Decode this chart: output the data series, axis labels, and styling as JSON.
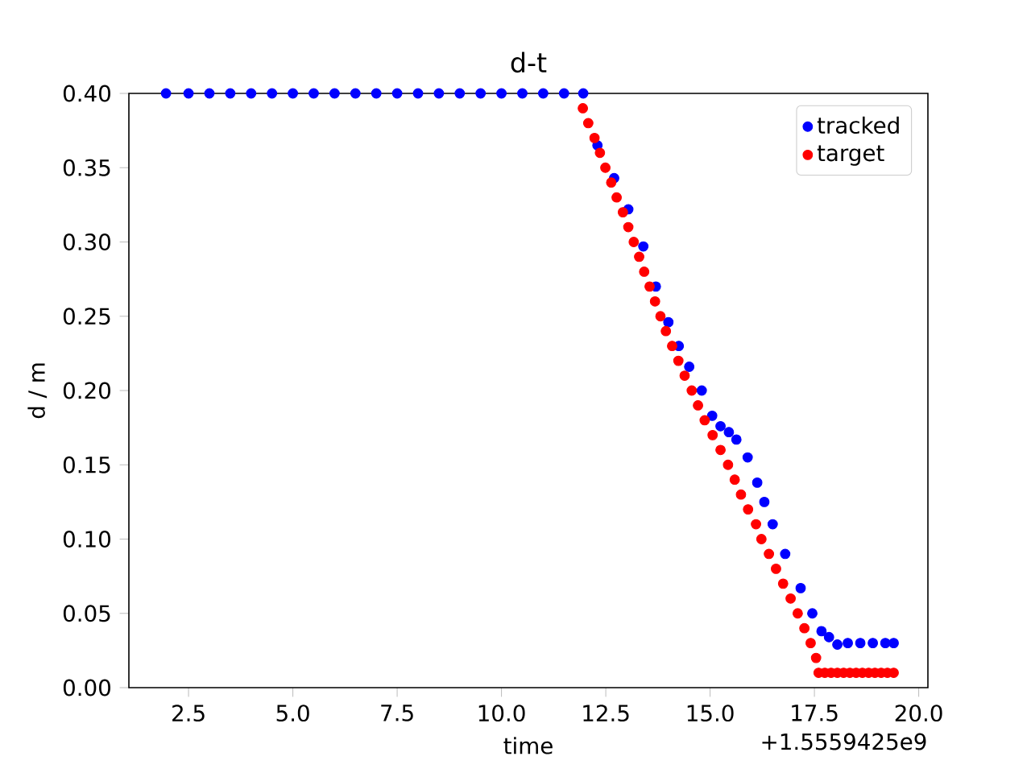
{
  "chart_data": {
    "type": "scatter",
    "title": "d-t",
    "xlabel": "time",
    "ylabel": "d / m",
    "annotations": [
      "+1.5559425e9"
    ],
    "xlim": [
      1.07,
      20.22
    ],
    "ylim": [
      0,
      0.4
    ],
    "xticks": [
      {
        "value": 2.5,
        "label": "2.5"
      },
      {
        "value": 5,
        "label": "5.0"
      },
      {
        "value": 7.5,
        "label": "7.5"
      },
      {
        "value": 10,
        "label": "10.0"
      },
      {
        "value": 12.5,
        "label": "12.5"
      },
      {
        "value": 15,
        "label": "15.0"
      },
      {
        "value": 17.5,
        "label": "17.5"
      },
      {
        "value": 20,
        "label": "20.0"
      }
    ],
    "yticks": [
      {
        "value": 0,
        "label": "0.00"
      },
      {
        "value": 0.05,
        "label": "0.05"
      },
      {
        "value": 0.1,
        "label": "0.10"
      },
      {
        "value": 0.15,
        "label": "0.15"
      },
      {
        "value": 0.2,
        "label": "0.20"
      },
      {
        "value": 0.25,
        "label": "0.25"
      },
      {
        "value": 0.3,
        "label": "0.30"
      },
      {
        "value": 0.35,
        "label": "0.35"
      },
      {
        "value": 0.4,
        "label": "0.40"
      }
    ],
    "legend": "top right",
    "marker": "circle",
    "grid": false,
    "series": [
      {
        "name": "tracked",
        "color": "#0000ff",
        "x": [
          1.96,
          2.5,
          3,
          3.5,
          4,
          4.5,
          5,
          5.5,
          6,
          6.5,
          7,
          7.5,
          8,
          8.5,
          9,
          9.5,
          10,
          10.5,
          11,
          11.5,
          11.96,
          12.3,
          12.7,
          13.04,
          13.4,
          13.7,
          14,
          14.25,
          14.5,
          14.8,
          15.05,
          15.25,
          15.45,
          15.63,
          15.9,
          16.13,
          16.3,
          16.5,
          16.8,
          17.17,
          17.45,
          17.67,
          17.85,
          18.05,
          18.3,
          18.6,
          18.9,
          19.2,
          19.4
        ],
        "values": [
          0.4,
          0.4,
          0.4,
          0.4,
          0.4,
          0.4,
          0.4,
          0.4,
          0.4,
          0.4,
          0.4,
          0.4,
          0.4,
          0.4,
          0.4,
          0.4,
          0.4,
          0.4,
          0.4,
          0.4,
          0.4,
          0.365,
          0.343,
          0.322,
          0.297,
          0.27,
          0.246,
          0.23,
          0.216,
          0.2,
          0.183,
          0.176,
          0.172,
          0.167,
          0.155,
          0.138,
          0.125,
          0.11,
          0.09,
          0.067,
          0.05,
          0.038,
          0.034,
          0.029,
          0.03,
          0.03,
          0.03,
          0.03,
          0.03
        ]
      },
      {
        "name": "target",
        "color": "#ff0000",
        "x": [
          11.95,
          12.08,
          12.23,
          12.36,
          12.49,
          12.63,
          12.76,
          12.91,
          13.04,
          13.17,
          13.3,
          13.42,
          13.55,
          13.68,
          13.81,
          13.94,
          14.09,
          14.24,
          14.39,
          14.56,
          14.71,
          14.87,
          15.06,
          15.25,
          15.43,
          15.59,
          15.74,
          15.91,
          16.1,
          16.23,
          16.41,
          16.58,
          16.75,
          16.93,
          17.1,
          17.26,
          17.41,
          17.54,
          17.6,
          17.75,
          17.9,
          18.05,
          18.2,
          18.35,
          18.5,
          18.65,
          18.8,
          18.95,
          19.1,
          19.25,
          19.4
        ],
        "values": [
          0.39,
          0.38,
          0.37,
          0.36,
          0.35,
          0.34,
          0.33,
          0.32,
          0.31,
          0.3,
          0.29,
          0.28,
          0.27,
          0.26,
          0.25,
          0.24,
          0.23,
          0.22,
          0.21,
          0.2,
          0.19,
          0.18,
          0.17,
          0.16,
          0.15,
          0.14,
          0.13,
          0.12,
          0.11,
          0.1,
          0.09,
          0.08,
          0.07,
          0.06,
          0.05,
          0.04,
          0.03,
          0.02,
          0.01,
          0.01,
          0.01,
          0.01,
          0.01,
          0.01,
          0.01,
          0.01,
          0.01,
          0.01,
          0.01,
          0.01,
          0.01
        ]
      }
    ]
  }
}
